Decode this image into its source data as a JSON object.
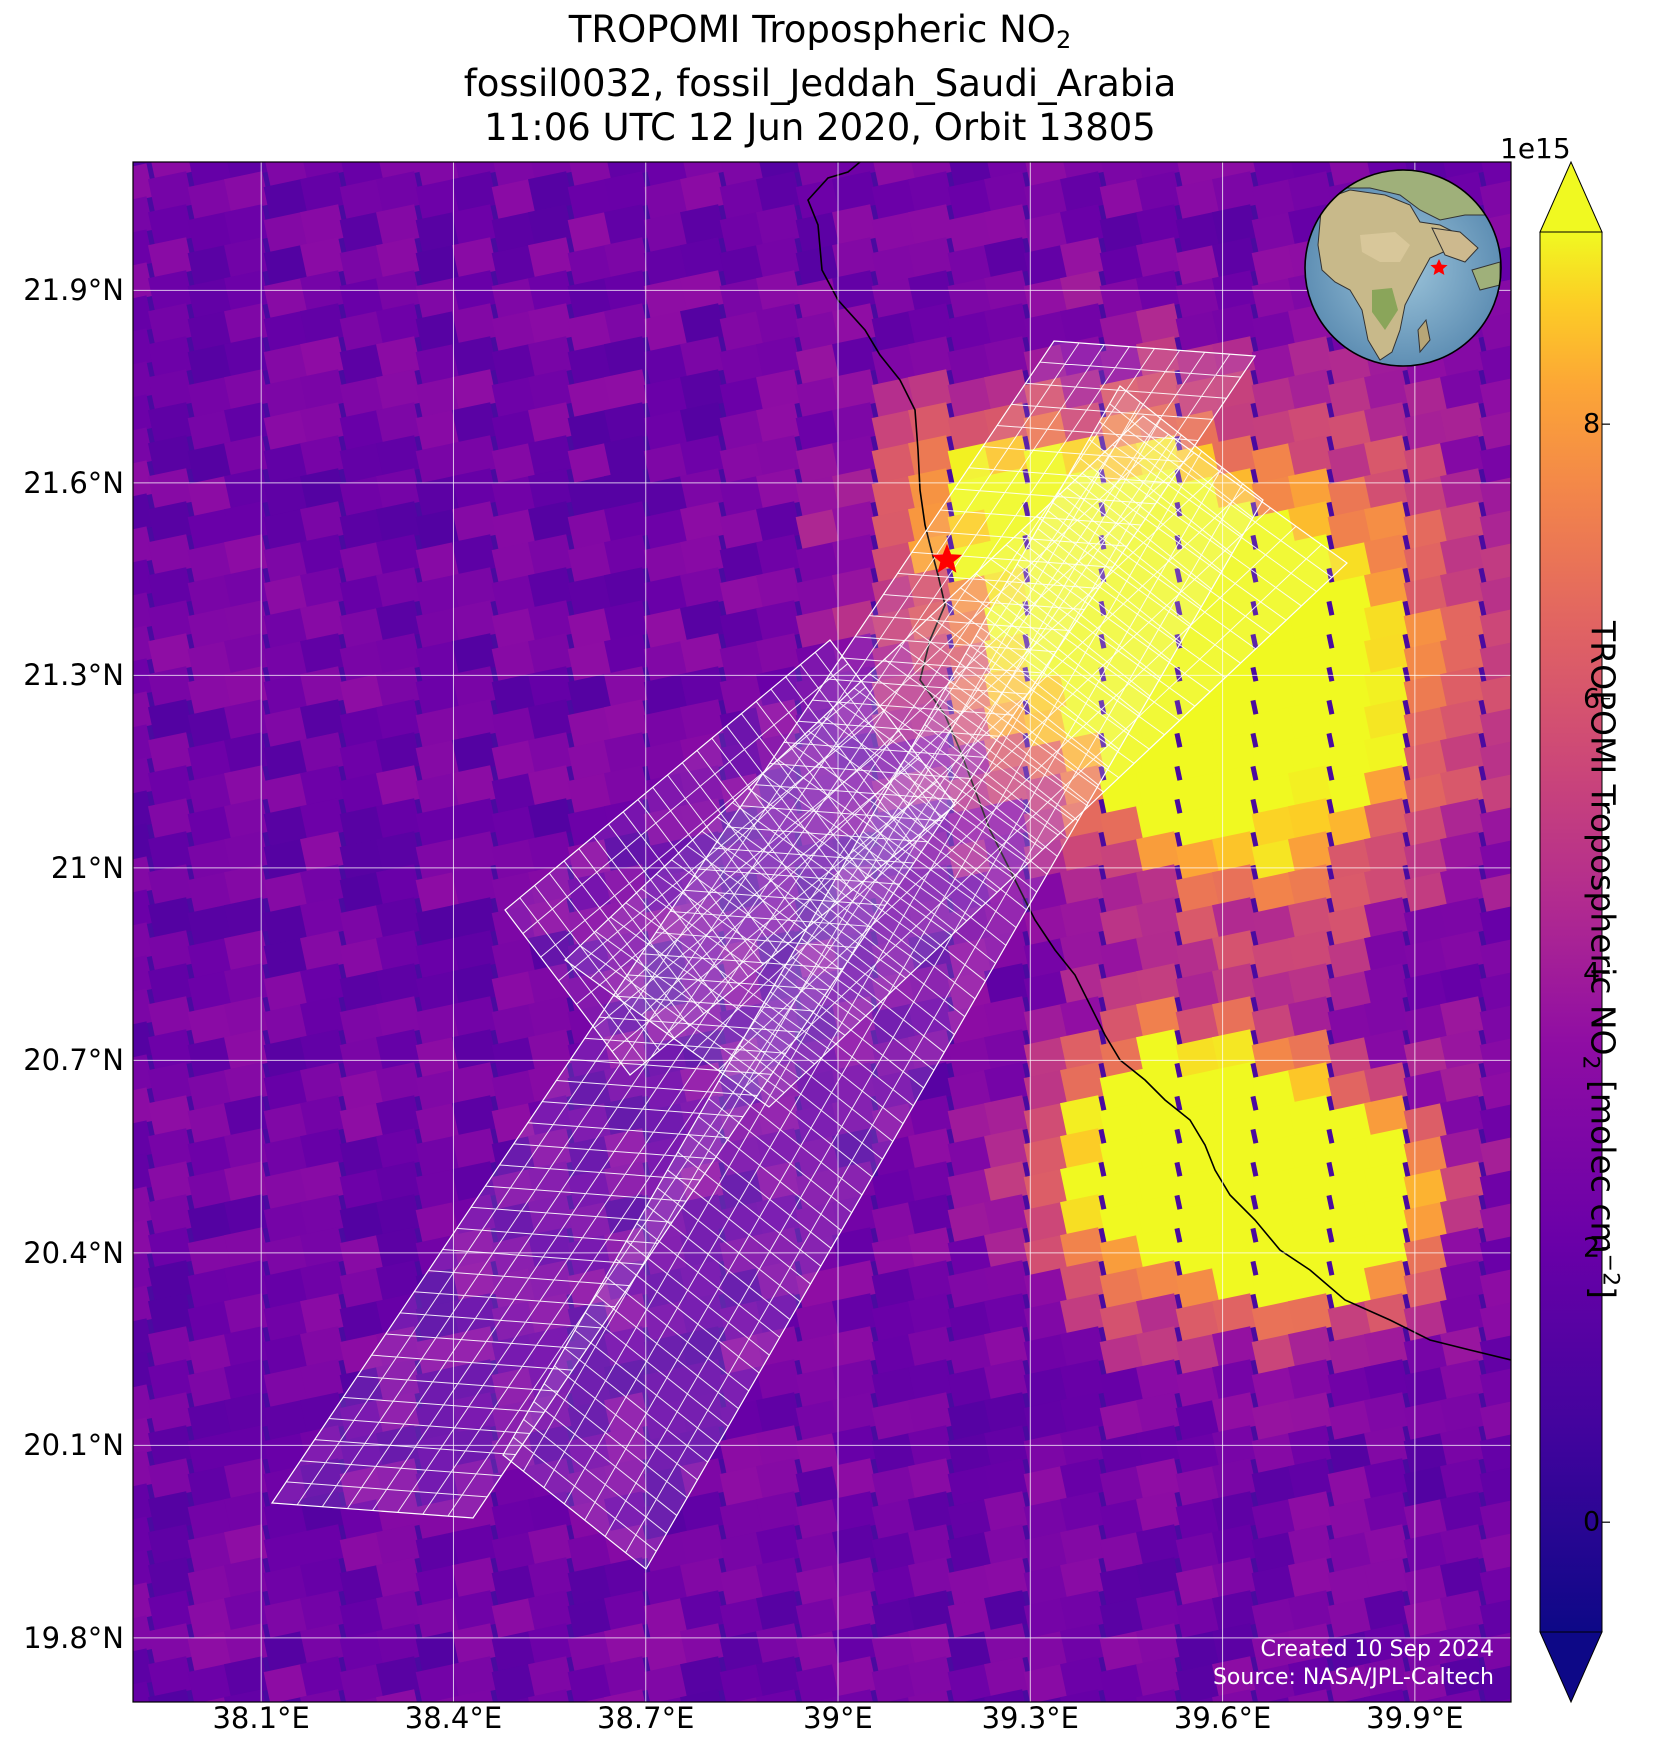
{
  "title": {
    "line1_prefix": "TROPOMI Tropospheric NO",
    "line1_sub": "2",
    "line2": "fossil0032, fossil_Jeddah_Saudi_Arabia",
    "line3": "11:06 UTC 12 Jun 2020, Orbit 13805"
  },
  "map": {
    "lat_ticks": [
      "21.9°N",
      "21.6°N",
      "21.3°N",
      "21°N",
      "20.7°N",
      "20.4°N",
      "20.1°N",
      "19.8°N"
    ],
    "lon_ticks": [
      "38.1°E",
      "38.4°E",
      "38.7°E",
      "39°E",
      "39.3°E",
      "39.6°E",
      "39.9°E"
    ],
    "lat_range": [
      19.7,
      22.1
    ],
    "lon_range": [
      37.9,
      40.05
    ],
    "target_marker": {
      "lat": 21.48,
      "lon": 39.17,
      "symbol": "star",
      "color": "#ff0000"
    },
    "grid_color": "#ffffff",
    "coastline_color": "#000000",
    "inset_globe": {
      "icon": "globe-icon",
      "marker_color": "#ff0000"
    }
  },
  "colorbar": {
    "label_prefix": "TROPOMI Tropospheric NO",
    "label_sub": "2",
    "label_mid": " [molec cm",
    "label_sup": "−2",
    "label_suffix": "]",
    "exponent": "1e15",
    "ticks": [
      "0",
      "2",
      "4",
      "6",
      "8"
    ],
    "tick_values": [
      0,
      2,
      4,
      6,
      8
    ],
    "vmin": -0.8,
    "vmax": 9.4,
    "colormap": "plasma"
  },
  "credits": {
    "created": "Created 10 Sep 2024",
    "source": "Source: NASA/JPL-Caltech"
  }
}
